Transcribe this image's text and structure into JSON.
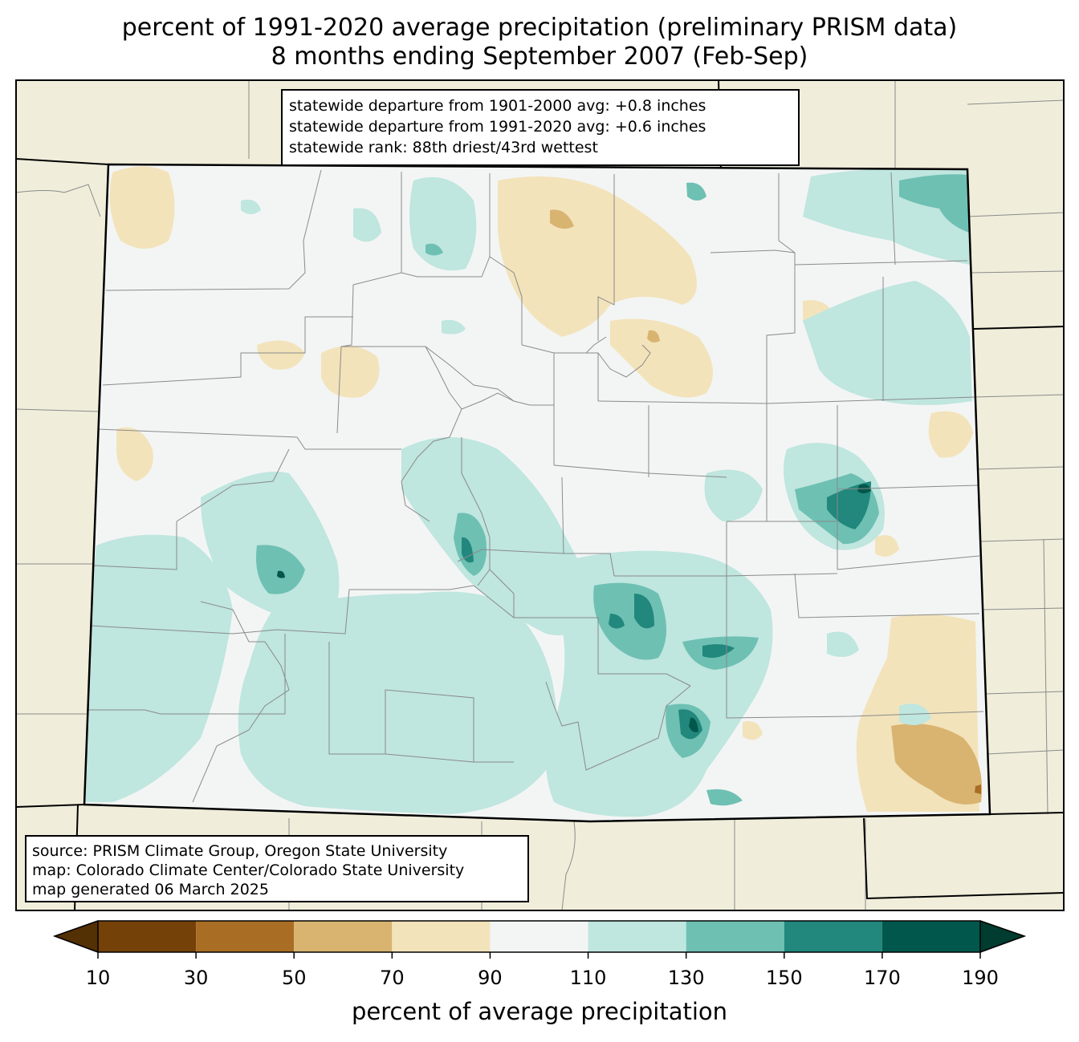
{
  "title": {
    "line1": "percent of 1991-2020 average precipitation (preliminary PRISM data)",
    "line2": "8 months ending September 2007 (Feb-Sep)"
  },
  "stats_box": {
    "line1": "statewide departure from 1901-2000 avg: +0.8 inches",
    "line2": "statewide departure from 1991-2020 avg: +0.6 inches",
    "line3": "statewide rank: 88th driest/43rd wettest"
  },
  "credit_box": {
    "line1": "source: PRISM Climate Group, Oregon State University",
    "line2": "map: Colorado Climate Center/Colorado State University",
    "line3": "map generated 06 March 2025"
  },
  "colorbar": {
    "label": "percent of average precipitation",
    "ticks": [
      "10",
      "30",
      "50",
      "70",
      "90",
      "110",
      "130",
      "150",
      "170",
      "190"
    ],
    "under_color": "#543005",
    "over_color": "#003c30",
    "bins": [
      {
        "min": 10,
        "max": 30,
        "color": "#744108"
      },
      {
        "min": 30,
        "max": 50,
        "color": "#a96d24"
      },
      {
        "min": 50,
        "max": 70,
        "color": "#d8b470"
      },
      {
        "min": 70,
        "max": 90,
        "color": "#f3e3bb"
      },
      {
        "min": 90,
        "max": 110,
        "color": "#f3f5f4"
      },
      {
        "min": 110,
        "max": 130,
        "color": "#bfe6df"
      },
      {
        "min": 130,
        "max": 150,
        "color": "#6ec0b3"
      },
      {
        "min": 150,
        "max": 170,
        "color": "#22877c"
      },
      {
        "min": 170,
        "max": 190,
        "color": "#01574b"
      }
    ]
  },
  "map": {
    "background_color": "#f0eedb",
    "state_fill": "#f3f5f4",
    "county_line_color": "#8a8a8a",
    "state_line_color": "#000000"
  }
}
